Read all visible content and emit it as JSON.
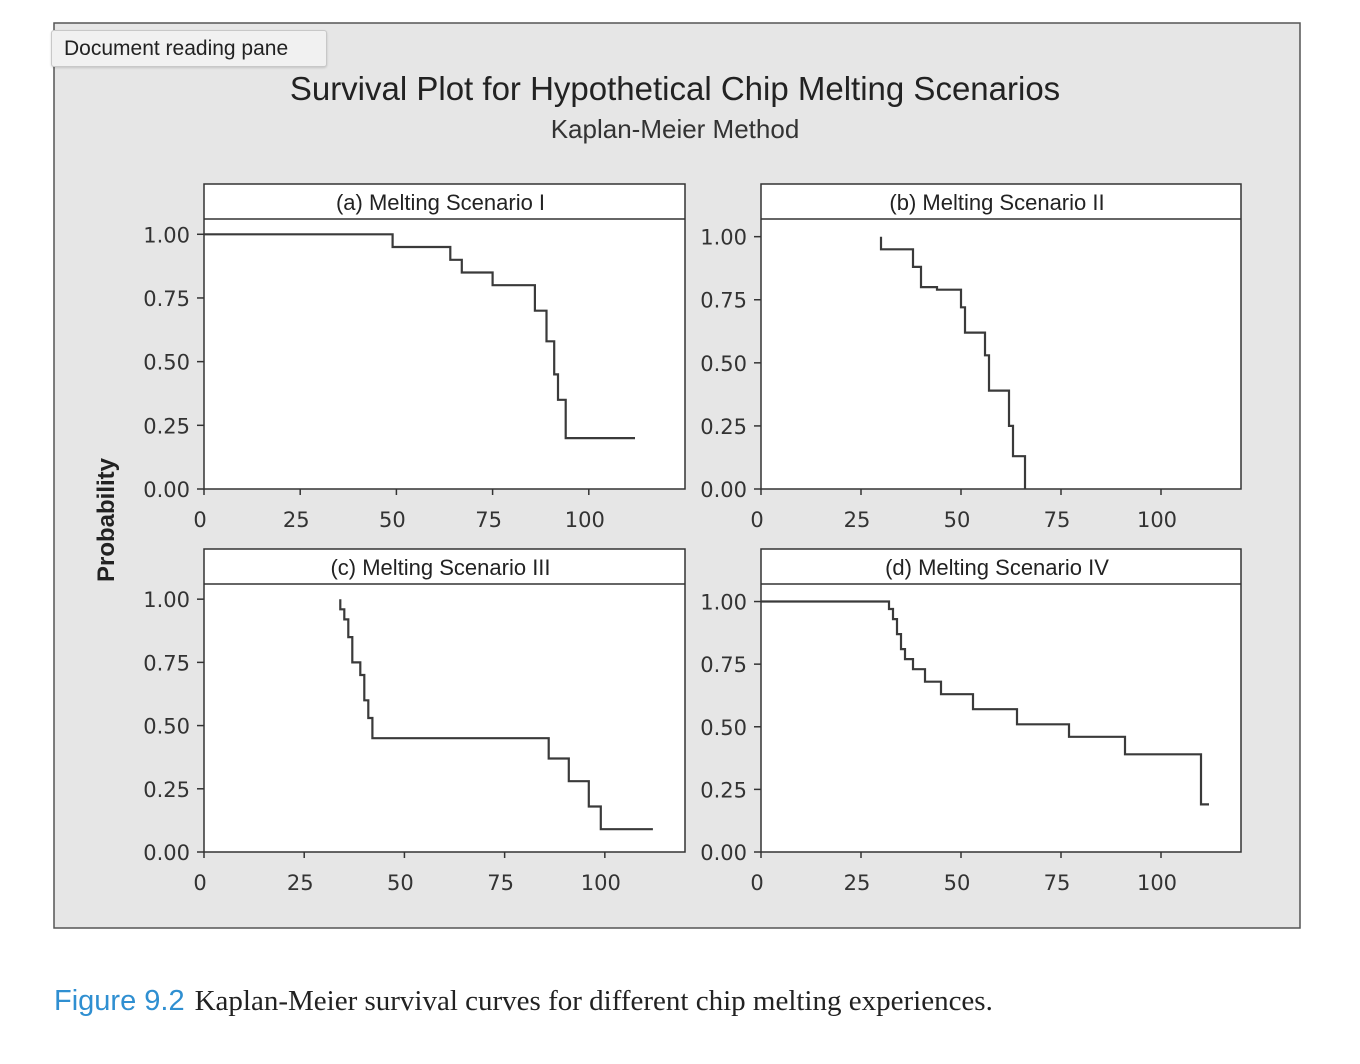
{
  "pane_label": "Document reading pane",
  "figure": {
    "title": "Survival Plot for Hypothetical Chip Melting Scenarios",
    "subtitle": "Kaplan-Meier Method",
    "ylabel": "Probability",
    "colors": {
      "frame_bg": "#e6e6e6",
      "plot_bg": "#ffffff",
      "line": "#3a3a3a",
      "caption_accent": "#2f8fd1"
    }
  },
  "chart_data": [
    {
      "type": "line",
      "title": "(a) Melting Scenario I",
      "xlim": [
        0,
        125
      ],
      "ylim": [
        0,
        1.06
      ],
      "xticks": [
        0,
        25,
        50,
        75,
        100
      ],
      "yticks": [
        0,
        0.25,
        0.5,
        0.75,
        1.0
      ],
      "ytick_labels": [
        "0.00",
        "0.25",
        "0.50",
        "0.75",
        "1.00"
      ],
      "series": [
        {
          "step_points": [
            [
              0,
              1.0
            ],
            [
              49,
              1.0
            ],
            [
              49,
              0.95
            ],
            [
              64,
              0.95
            ],
            [
              64,
              0.9
            ],
            [
              67,
              0.9
            ],
            [
              67,
              0.85
            ],
            [
              75,
              0.85
            ],
            [
              75,
              0.8
            ],
            [
              86,
              0.8
            ],
            [
              86,
              0.7
            ],
            [
              89,
              0.7
            ],
            [
              89,
              0.58
            ],
            [
              91,
              0.58
            ],
            [
              91,
              0.45
            ],
            [
              92,
              0.45
            ],
            [
              92,
              0.35
            ],
            [
              94,
              0.35
            ],
            [
              94,
              0.2
            ],
            [
              112,
              0.2
            ]
          ]
        }
      ]
    },
    {
      "type": "line",
      "title": "(b) Melting Scenario II",
      "xlim": [
        0,
        120
      ],
      "ylim": [
        0,
        1.07
      ],
      "xticks": [
        0,
        25,
        50,
        75,
        100
      ],
      "yticks": [
        0,
        0.25,
        0.5,
        0.75,
        1.0
      ],
      "ytick_labels": [
        "0.00",
        "0.25",
        "0.50",
        "0.75",
        "1.00"
      ],
      "series": [
        {
          "step_points": [
            [
              30,
              1.0
            ],
            [
              30,
              0.95
            ],
            [
              38,
              0.95
            ],
            [
              38,
              0.88
            ],
            [
              40,
              0.88
            ],
            [
              40,
              0.8
            ],
            [
              44,
              0.8
            ],
            [
              44,
              0.79
            ],
            [
              50,
              0.79
            ],
            [
              50,
              0.72
            ],
            [
              51,
              0.72
            ],
            [
              51,
              0.62
            ],
            [
              56,
              0.62
            ],
            [
              56,
              0.53
            ],
            [
              57,
              0.53
            ],
            [
              57,
              0.39
            ],
            [
              62,
              0.39
            ],
            [
              62,
              0.25
            ],
            [
              63,
              0.25
            ],
            [
              63,
              0.13
            ],
            [
              66,
              0.13
            ],
            [
              66,
              0.0
            ]
          ]
        }
      ]
    },
    {
      "type": "line",
      "title": "(c) Melting Scenario III",
      "xlim": [
        0,
        120
      ],
      "ylim": [
        0,
        1.06
      ],
      "xticks": [
        0,
        25,
        50,
        75,
        100
      ],
      "yticks": [
        0,
        0.25,
        0.5,
        0.75,
        1.0
      ],
      "ytick_labels": [
        "0.00",
        "0.25",
        "0.50",
        "0.75",
        "1.00"
      ],
      "series": [
        {
          "step_points": [
            [
              34,
              1.0
            ],
            [
              34,
              0.96
            ],
            [
              35,
              0.96
            ],
            [
              35,
              0.92
            ],
            [
              36,
              0.92
            ],
            [
              36,
              0.85
            ],
            [
              37,
              0.85
            ],
            [
              37,
              0.75
            ],
            [
              39,
              0.75
            ],
            [
              39,
              0.7
            ],
            [
              40,
              0.7
            ],
            [
              40,
              0.6
            ],
            [
              41,
              0.6
            ],
            [
              41,
              0.53
            ],
            [
              42,
              0.53
            ],
            [
              42,
              0.45
            ],
            [
              86,
              0.45
            ],
            [
              86,
              0.37
            ],
            [
              91,
              0.37
            ],
            [
              91,
              0.28
            ],
            [
              96,
              0.28
            ],
            [
              96,
              0.18
            ],
            [
              99,
              0.18
            ],
            [
              99,
              0.09
            ],
            [
              112,
              0.09
            ]
          ]
        }
      ]
    },
    {
      "type": "line",
      "title": "(d) Melting Scenario IV",
      "xlim": [
        0,
        120
      ],
      "ylim": [
        0,
        1.07
      ],
      "xticks": [
        0,
        25,
        50,
        75,
        100
      ],
      "yticks": [
        0,
        0.25,
        0.5,
        0.75,
        1.0
      ],
      "ytick_labels": [
        "0.00",
        "0.25",
        "0.50",
        "0.75",
        "1.00"
      ],
      "series": [
        {
          "step_points": [
            [
              0,
              1.0
            ],
            [
              32,
              1.0
            ],
            [
              32,
              0.97
            ],
            [
              33,
              0.97
            ],
            [
              33,
              0.93
            ],
            [
              34,
              0.93
            ],
            [
              34,
              0.87
            ],
            [
              35,
              0.87
            ],
            [
              35,
              0.81
            ],
            [
              36,
              0.81
            ],
            [
              36,
              0.77
            ],
            [
              38,
              0.77
            ],
            [
              38,
              0.73
            ],
            [
              41,
              0.73
            ],
            [
              41,
              0.68
            ],
            [
              45,
              0.68
            ],
            [
              45,
              0.63
            ],
            [
              53,
              0.63
            ],
            [
              53,
              0.57
            ],
            [
              64,
              0.57
            ],
            [
              64,
              0.51
            ],
            [
              77,
              0.51
            ],
            [
              77,
              0.46
            ],
            [
              91,
              0.46
            ],
            [
              91,
              0.39
            ],
            [
              110,
              0.39
            ],
            [
              110,
              0.19
            ],
            [
              112,
              0.19
            ]
          ]
        }
      ]
    }
  ],
  "caption": {
    "number": "Figure 9.2",
    "text": "Kaplan-Meier survival curves for different chip melting experiences."
  }
}
